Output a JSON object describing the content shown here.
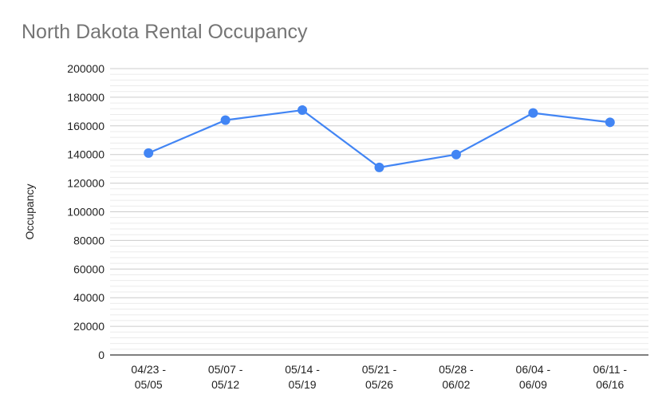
{
  "chart_data": {
    "type": "line",
    "title": "North Dakota Rental Occupancy",
    "xlabel": "",
    "ylabel": "Occupancy",
    "categories": [
      [
        "04/23 -",
        "05/05"
      ],
      [
        "05/07 -",
        "05/12"
      ],
      [
        "05/14 -",
        "05/19"
      ],
      [
        "05/21 -",
        "05/26"
      ],
      [
        "05/28 -",
        "06/02"
      ],
      [
        "06/04 -",
        "06/09"
      ],
      [
        "06/11 -",
        "06/16"
      ]
    ],
    "series": [
      {
        "values": [
          141000,
          164000,
          171000,
          131000,
          140000,
          169000,
          162500
        ]
      }
    ],
    "ylim": [
      0,
      200000
    ],
    "yticks": [
      "0",
      "20000",
      "40000",
      "60000",
      "80000",
      "100000",
      "120000",
      "140000",
      "160000",
      "180000",
      "200000"
    ],
    "grid": true,
    "legend": "none",
    "colors": {
      "line": "#4285f4",
      "major_grid": "#cccccc",
      "minor_grid": "#ebebeb",
      "axis": "#333333"
    }
  }
}
